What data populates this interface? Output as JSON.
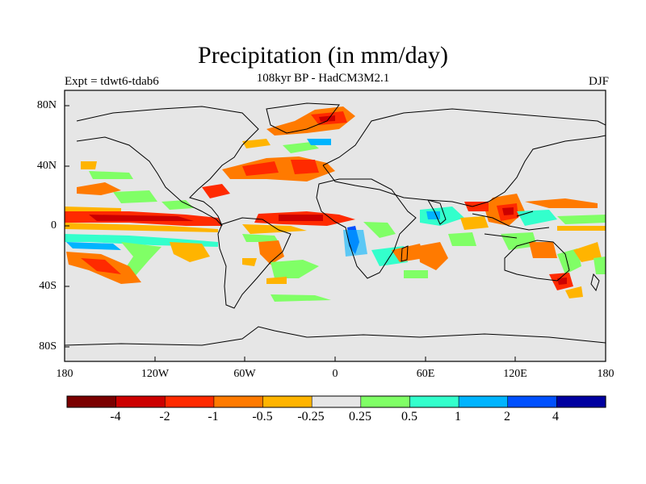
{
  "map": {
    "title": "Precipitation (in mm/day)",
    "subtitle": "108kyr BP - HadCM3M2.1",
    "experiment": "Expt = tdwt6-tdab6",
    "season": "DJF",
    "lat_labels": [
      "80N",
      "40N",
      "0",
      "40S",
      "80S"
    ],
    "lon_labels": [
      "180",
      "120W",
      "60W",
      "0",
      "60E",
      "120E",
      "180"
    ],
    "background_color": "#e6e6e6",
    "coastline_color": "#000000"
  },
  "colorbar": {
    "colors": [
      "#7a0000",
      "#cc0000",
      "#ff2a00",
      "#ff7a00",
      "#ffb400",
      "#e6e6e6",
      "#80ff66",
      "#33ffcc",
      "#00b4ff",
      "#0050ff",
      "#0000a0"
    ],
    "labels": [
      "-4",
      "-2",
      "-1",
      "-0.5",
      "-0.25",
      "0.25",
      "0.5",
      "1",
      "2",
      "4"
    ]
  }
}
